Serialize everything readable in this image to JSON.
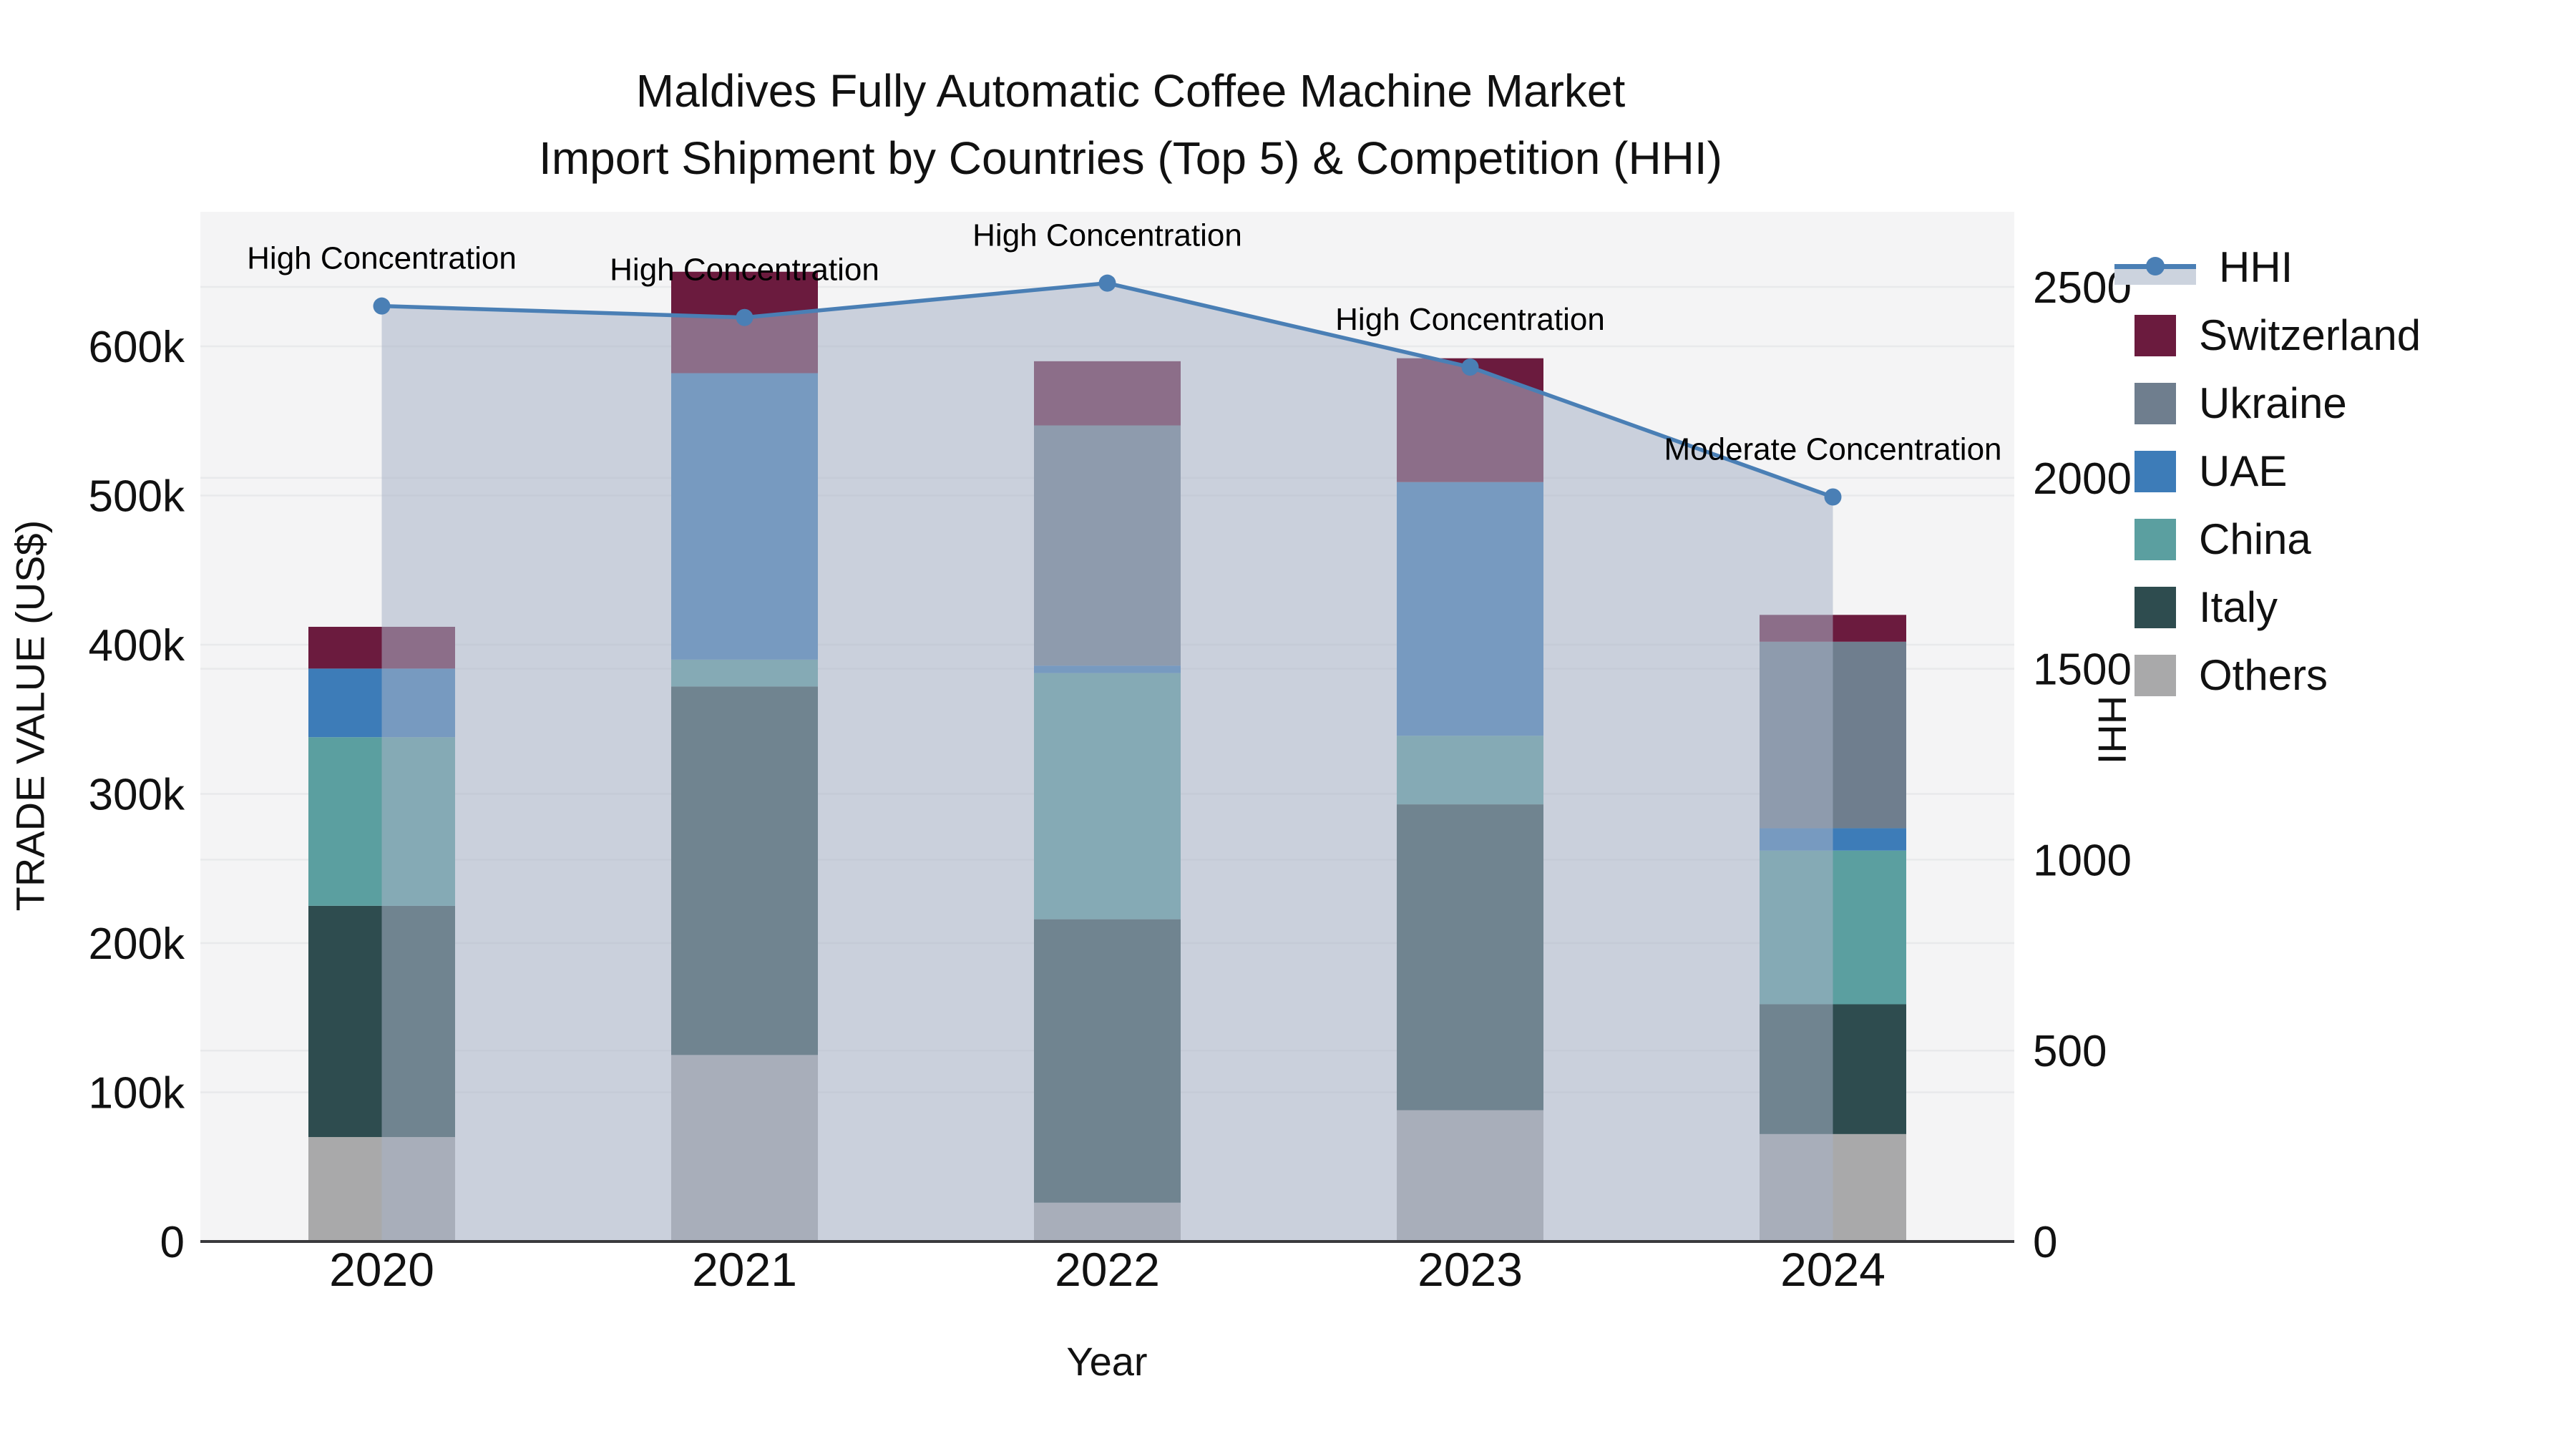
{
  "title": {
    "line1": "Maldives Fully Automatic Coffee Machine Market",
    "line2": "Import Shipment by Countries (Top 5) & Competition (HHI)"
  },
  "axes": {
    "x": {
      "label": "Year"
    },
    "y_left": {
      "label": "TRADE VALUE (US$)",
      "tick_labels": [
        "0",
        "100k",
        "200k",
        "300k",
        "400k",
        "500k",
        "600k"
      ],
      "tick_values_k": [
        0,
        100,
        200,
        300,
        400,
        500,
        600
      ]
    },
    "y_right": {
      "label": "HHI",
      "tick_labels": [
        "0",
        "500",
        "1000",
        "1500",
        "2000",
        "2500"
      ],
      "tick_values": [
        0,
        500,
        1000,
        1500,
        2000,
        2500
      ]
    }
  },
  "chart_data": {
    "type": "bar+line",
    "stacked": true,
    "title": "Maldives Fully Automatic Coffee Machine Market Import Shipment by Countries (Top 5) & Competition (HHI)",
    "xlabel": "Year",
    "ylabel_left": "TRADE VALUE (US$)",
    "ylabel_right": "HHI",
    "ylim_left_thousand_usd": [
      0,
      600
    ],
    "ylim_right_hhi": [
      0,
      2500
    ],
    "grid": true,
    "legend_position": "right",
    "categories": [
      "2020",
      "2021",
      "2022",
      "2023",
      "2024"
    ],
    "bar_unit": "thousand US$",
    "series": [
      {
        "name": "Others",
        "type": "bar",
        "color": "#a9a9aa",
        "values_k": [
          70,
          125,
          26,
          88,
          72
        ]
      },
      {
        "name": "Italy",
        "type": "bar",
        "color": "#2e4c4f",
        "values_k": [
          155,
          247,
          190,
          205,
          87
        ]
      },
      {
        "name": "China",
        "type": "bar",
        "color": "#5b9fa0",
        "values_k": [
          113,
          18,
          165,
          46,
          103
        ]
      },
      {
        "name": "UAE",
        "type": "bar",
        "color": "#3d7cb8",
        "values_k": [
          46,
          192,
          5,
          170,
          15
        ]
      },
      {
        "name": "Ukraine",
        "type": "bar",
        "color": "#6f7e8e",
        "values_k": [
          0,
          0,
          161,
          0,
          125
        ]
      },
      {
        "name": "Switzerland",
        "type": "bar",
        "color": "#6b1b3e",
        "values_k": [
          28,
          68,
          43,
          83,
          18
        ]
      }
    ],
    "bar_totals_k": [
      412,
      650,
      590,
      592,
      420
    ],
    "line_series": {
      "name": "HHI",
      "axis": "right",
      "color": "#4a7fb5",
      "area_fill": "rgba(168,179,199,0.55)",
      "values": [
        2450,
        2420,
        2510,
        2290,
        1950
      ]
    },
    "annotations": [
      {
        "text": "High Concentration",
        "category": "2020"
      },
      {
        "text": "High Concentration",
        "category": "2021"
      },
      {
        "text": "High Concentration",
        "category": "2022"
      },
      {
        "text": "High Concentration",
        "category": "2023"
      },
      {
        "text": "Moderate Concentration",
        "category": "2024"
      }
    ]
  },
  "legend": {
    "items": [
      {
        "label": "HHI",
        "kind": "line",
        "color": "#4a7fb5",
        "band_color": "#ccd3de"
      },
      {
        "label": "Switzerland",
        "kind": "patch",
        "color": "#6b1b3e"
      },
      {
        "label": "Ukraine",
        "kind": "patch",
        "color": "#6f7e8e"
      },
      {
        "label": "UAE",
        "kind": "patch",
        "color": "#3d7cb8"
      },
      {
        "label": "China",
        "kind": "patch",
        "color": "#5b9fa0"
      },
      {
        "label": "Italy",
        "kind": "patch",
        "color": "#2e4c4f"
      },
      {
        "label": "Others",
        "kind": "patch",
        "color": "#a9a9aa"
      }
    ]
  },
  "style_colors": {
    "plot_background": "#f4f4f5",
    "gridline": "#e8e9eb",
    "axis_line": "#3a3a3d",
    "text": "#111111"
  }
}
